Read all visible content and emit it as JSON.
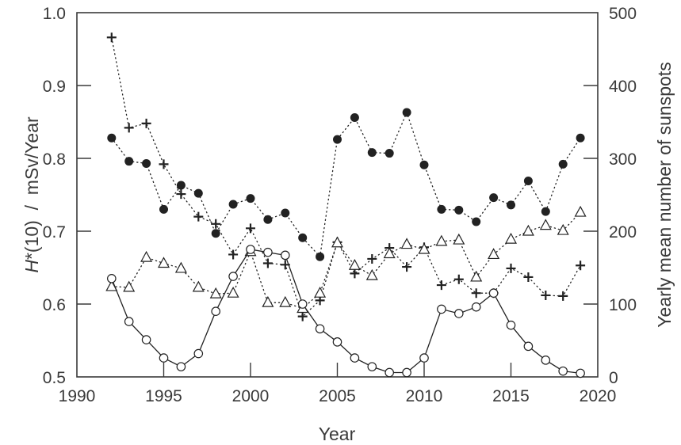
{
  "chart_data": {
    "type": "line",
    "title": "",
    "xlabel": "Year",
    "ylabel": "H*(10)  /  mSv/Year",
    "ylabel_parts": {
      "symbol": "H",
      "rest": "*(10)  /  mSv/Year"
    },
    "y2label": "Yearly mean number of sunspots",
    "xlim": [
      1990,
      2020
    ],
    "ylim": [
      0.5,
      1.0
    ],
    "y2lim": [
      0,
      500
    ],
    "xticks": [
      1990,
      1995,
      2000,
      2005,
      2010,
      2015,
      2020
    ],
    "yticks": [
      "0.5",
      "0.6",
      "0.7",
      "0.8",
      "0.9",
      "1.0"
    ],
    "y2ticks": [
      "0",
      "100",
      "200",
      "300",
      "400",
      "500"
    ],
    "grid": false,
    "legend": "none",
    "x": [
      1992,
      1993,
      1994,
      1995,
      1996,
      1997,
      1998,
      1999,
      2000,
      2001,
      2002,
      2003,
      2004,
      2005,
      2006,
      2007,
      2008,
      2009,
      2010,
      2011,
      2012,
      2013,
      2014,
      2015,
      2016,
      2017,
      2018,
      2019
    ],
    "series": [
      {
        "name": "H*(10) series (filled circles)",
        "axis": "left",
        "marker": "filled-circle",
        "line": "dotted",
        "values": [
          0.828,
          0.796,
          0.793,
          0.73,
          0.763,
          0.752,
          0.697,
          0.737,
          0.745,
          0.716,
          0.725,
          0.691,
          0.665,
          0.826,
          0.856,
          0.808,
          0.807,
          0.863,
          0.791,
          0.73,
          0.729,
          0.713,
          0.746,
          0.736,
          0.769,
          0.727,
          0.792,
          0.828
        ]
      },
      {
        "name": "H*(10) series (crosses)",
        "axis": "left",
        "marker": "cross",
        "line": "dotted",
        "values": [
          0.966,
          0.842,
          0.848,
          0.792,
          0.751,
          0.72,
          0.71,
          0.668,
          0.704,
          0.656,
          0.654,
          0.583,
          0.605,
          0.685,
          0.642,
          0.662,
          0.677,
          0.651,
          0.678,
          0.626,
          0.634,
          0.615,
          0.615,
          0.649,
          0.637,
          0.612,
          0.611,
          0.653
        ]
      },
      {
        "name": "H*(10) series (open triangles)",
        "axis": "left",
        "marker": "open-triangle",
        "line": "dotted",
        "values": [
          0.624,
          0.623,
          0.664,
          0.656,
          0.649,
          0.623,
          0.614,
          0.615,
          0.672,
          0.602,
          0.602,
          0.594,
          0.615,
          0.684,
          0.653,
          0.639,
          0.669,
          0.682,
          0.675,
          0.686,
          0.688,
          0.637,
          0.668,
          0.689,
          0.7,
          0.708,
          0.701,
          0.726
        ]
      },
      {
        "name": "Yearly mean number of sunspots",
        "axis": "right",
        "marker": "open-circle",
        "line": "solid",
        "values": [
          135,
          76,
          51,
          26,
          14,
          32,
          90,
          138,
          175,
          171,
          167,
          100,
          66,
          48,
          26,
          14,
          6,
          6,
          26,
          93,
          87,
          96,
          115,
          71,
          42,
          23,
          8,
          5
        ]
      }
    ]
  },
  "colors": {
    "axis": "#3a3a3a",
    "marker": "#222222",
    "background": "#ffffff"
  }
}
